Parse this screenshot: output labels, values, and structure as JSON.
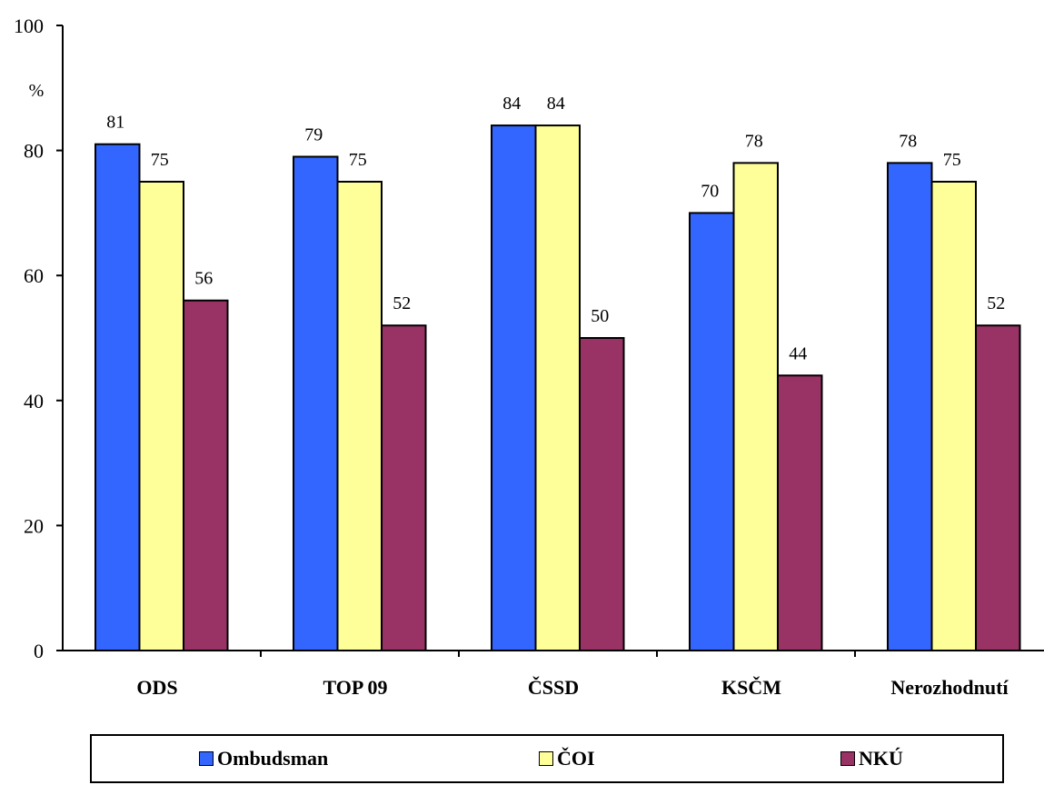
{
  "chart_data": {
    "type": "bar",
    "title": "",
    "xlabel": "",
    "ylabel": "",
    "unit": "%",
    "ylim": [
      0,
      100
    ],
    "yticks": [
      0,
      20,
      40,
      60,
      80,
      100
    ],
    "categories": [
      "ODS",
      "TOP 09",
      "ČSSD",
      "KSČM",
      "Nerozhodnutí"
    ],
    "series": [
      {
        "name": "Ombudsman",
        "color": "#3366ff",
        "values": [
          81,
          79,
          84,
          70,
          78
        ]
      },
      {
        "name": "ČOI",
        "color": "#ffff99",
        "values": [
          75,
          75,
          84,
          78,
          75
        ]
      },
      {
        "name": "NKÚ",
        "color": "#993366",
        "values": [
          56,
          52,
          50,
          44,
          52
        ]
      }
    ],
    "grid": false,
    "legend_position": "bottom"
  }
}
